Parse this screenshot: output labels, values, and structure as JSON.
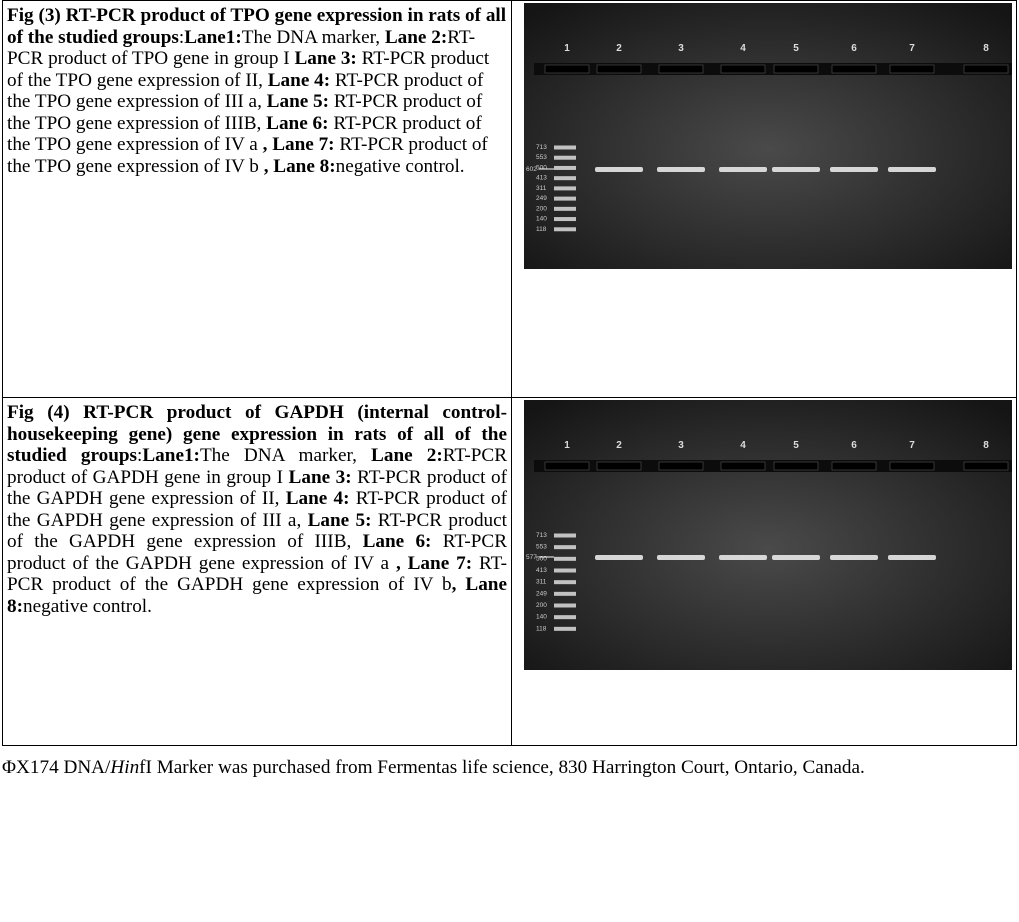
{
  "figures": [
    {
      "caption": [
        {
          "text": "Fig (3) RT-PCR product of TPO gene expression in rats of  all of the studied groups",
          "bold": true
        },
        {
          "text": ":",
          "bold": false
        },
        {
          "text": "Lane1:",
          "bold": true
        },
        {
          "text": "The DNA marker, ",
          "bold": false
        },
        {
          "text": "Lane 2:",
          "bold": true
        },
        {
          "text": "RT-PCR product of TPO gene in group I ",
          "bold": false
        },
        {
          "text": "Lane 3:",
          "bold": true
        },
        {
          "text": " RT-PCR product of the TPO gene expression of II, ",
          "bold": false
        },
        {
          "text": "Lane 4:",
          "bold": true
        },
        {
          "text": " RT-PCR product of the TPO gene expression of III a, ",
          "bold": false
        },
        {
          "text": "Lane 5:",
          "bold": true
        },
        {
          "text": " RT-PCR product of the TPO gene expression of IIIB, ",
          "bold": false
        },
        {
          "text": "Lane 6:",
          "bold": true
        },
        {
          "text": " RT-PCR product of the TPO gene expression of IV a  ",
          "bold": false
        },
        {
          "text": ", Lane 7:",
          "bold": true
        },
        {
          "text": " RT-PCR product of the TPO gene expression of IV b  ",
          "bold": false
        },
        {
          "text": ", Lane 8:",
          "bold": true
        },
        {
          "text": "negative control.",
          "bold": false
        }
      ],
      "gel": {
        "lane_labels": [
          "1",
          "2",
          "3",
          "4",
          "5",
          "6",
          "7",
          "8"
        ],
        "arrow_label": "602",
        "marker_labels": [
          "713",
          "553",
          "500",
          "413",
          "311",
          "249",
          "200",
          "140",
          "118"
        ]
      }
    },
    {
      "caption": [
        {
          "text": "Fig (4) RT-PCR product of GAPDH (internal control-housekeeping gene) gene expression in rats of  all of the studied groups",
          "bold": true
        },
        {
          "text": ":",
          "bold": false
        },
        {
          "text": "Lane1:",
          "bold": true
        },
        {
          "text": "The DNA marker, ",
          "bold": false
        },
        {
          "text": "Lane 2:",
          "bold": true
        },
        {
          "text": "RT-PCR product of GAPDH gene in group I ",
          "bold": false
        },
        {
          "text": "Lane 3:",
          "bold": true
        },
        {
          "text": " RT-PCR product of the GAPDH gene expression of II, ",
          "bold": false
        },
        {
          "text": "Lane 4:",
          "bold": true
        },
        {
          "text": " RT-PCR product of the GAPDH gene expression of III a, ",
          "bold": false
        },
        {
          "text": "Lane 5:",
          "bold": true
        },
        {
          "text": " RT-PCR product of the GAPDH gene expression of IIIB, ",
          "bold": false
        },
        {
          "text": "Lane 6:",
          "bold": true
        },
        {
          "text": " RT-PCR product of the GAPDH gene expression of IV a   ",
          "bold": false
        },
        {
          "text": ", Lane 7:",
          "bold": true
        },
        {
          "text": " RT-PCR product of the GAPDH gene expression of IV b",
          "bold": false
        },
        {
          "text": ", Lane 8:",
          "bold": true
        },
        {
          "text": "negative control.",
          "bold": false
        }
      ],
      "gel": {
        "lane_labels": [
          "1",
          "2",
          "3",
          "4",
          "5",
          "6",
          "7",
          "8"
        ],
        "arrow_label": "577",
        "marker_labels": [
          "713",
          "553",
          "500",
          "413",
          "311",
          "249",
          "200",
          "140",
          "118"
        ]
      }
    }
  ],
  "footer": [
    {
      "text": "ΦX174 DNA/",
      "italic": false
    },
    {
      "text": "Hin",
      "italic": true
    },
    {
      "text": "fI Marker was purchased from Fermentas life science, 830 Harrington Court, Ontario, Canada.",
      "italic": false
    }
  ]
}
